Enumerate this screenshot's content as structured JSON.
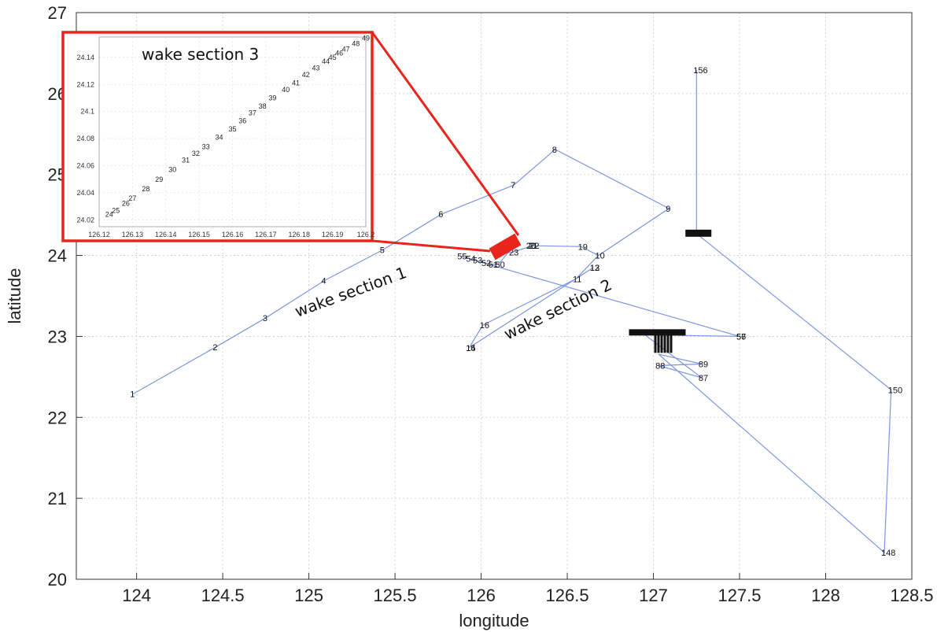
{
  "chart_data": {
    "type": "line",
    "xlabel": "longitude",
    "ylabel": "latitude",
    "xlim": [
      123.65,
      128.5
    ],
    "ylim": [
      20,
      27
    ],
    "xticks": [
      "124",
      "124.5",
      "125",
      "125.5",
      "126",
      "126.5",
      "127",
      "127.5",
      "128",
      "128.5"
    ],
    "yticks": [
      "20",
      "21",
      "22",
      "23",
      "24",
      "25",
      "26",
      "27"
    ],
    "grid": true,
    "line_color": "#7b96e0",
    "points": [
      {
        "label": "1",
        "x": 123.98,
        "y": 22.29
      },
      {
        "label": "2",
        "x": 124.46,
        "y": 22.87
      },
      {
        "label": "3",
        "x": 124.75,
        "y": 23.23
      },
      {
        "label": "4",
        "x": 125.09,
        "y": 23.69
      },
      {
        "label": "5",
        "x": 125.43,
        "y": 24.07
      },
      {
        "label": "6",
        "x": 125.77,
        "y": 24.51
      },
      {
        "label": "7",
        "x": 126.19,
        "y": 24.87
      },
      {
        "label": "8",
        "x": 126.43,
        "y": 25.31
      },
      {
        "label": "9",
        "x": 127.09,
        "y": 24.58
      },
      {
        "label": "10",
        "x": 126.68,
        "y": 24.0
      },
      {
        "label": "11",
        "x": 126.55,
        "y": 23.71
      },
      {
        "label": "12",
        "x": 126.65,
        "y": 23.85
      },
      {
        "label": "13",
        "x": 126.65,
        "y": 23.85
      },
      {
        "label": "14",
        "x": 125.93,
        "y": 22.86
      },
      {
        "label": "15",
        "x": 125.93,
        "y": 22.86
      },
      {
        "label": "16",
        "x": 126.01,
        "y": 23.14
      },
      {
        "label": "19",
        "x": 126.58,
        "y": 24.11
      },
      {
        "label": "20",
        "x": 126.28,
        "y": 24.12
      },
      {
        "label": "21",
        "x": 126.29,
        "y": 24.12
      },
      {
        "label": "22",
        "x": 126.3,
        "y": 24.12
      },
      {
        "label": "23",
        "x": 126.18,
        "y": 24.04
      },
      {
        "label": "50",
        "x": 126.1,
        "y": 23.89
      },
      {
        "label": "51",
        "x": 126.06,
        "y": 23.89
      },
      {
        "label": "52",
        "x": 126.02,
        "y": 23.91
      },
      {
        "label": "53",
        "x": 125.97,
        "y": 23.94
      },
      {
        "label": "54",
        "x": 125.93,
        "y": 23.96
      },
      {
        "label": "55",
        "x": 125.88,
        "y": 23.99
      },
      {
        "label": "56",
        "x": 127.5,
        "y": 23.0
      },
      {
        "label": "57",
        "x": 127.5,
        "y": 23.0
      },
      {
        "label": "87",
        "x": 127.28,
        "y": 22.49
      },
      {
        "label": "88",
        "x": 127.03,
        "y": 22.64
      },
      {
        "label": "89",
        "x": 127.28,
        "y": 22.66
      },
      {
        "label": "148",
        "x": 128.34,
        "y": 20.33
      },
      {
        "label": "150",
        "x": 128.38,
        "y": 22.34
      },
      {
        "label": "156",
        "x": 127.25,
        "y": 26.29
      }
    ],
    "path": [
      [
        123.98,
        22.29
      ],
      [
        124.46,
        22.87
      ],
      [
        124.75,
        23.23
      ],
      [
        125.09,
        23.69
      ],
      [
        125.43,
        24.07
      ],
      [
        125.77,
        24.51
      ],
      [
        126.19,
        24.87
      ],
      [
        126.43,
        25.31
      ],
      [
        127.09,
        24.58
      ],
      [
        126.68,
        24.0
      ],
      [
        126.55,
        23.71
      ],
      [
        126.65,
        23.85
      ],
      [
        125.93,
        22.86
      ],
      [
        126.01,
        23.14
      ],
      [
        126.55,
        23.71
      ],
      [
        126.68,
        24.0
      ],
      [
        126.58,
        24.11
      ],
      [
        126.3,
        24.12
      ],
      [
        126.18,
        24.04
      ],
      [
        126.12,
        24.02
      ],
      [
        126.2,
        24.15
      ],
      [
        126.1,
        23.89
      ],
      [
        126.06,
        23.89
      ],
      [
        126.02,
        23.91
      ],
      [
        125.97,
        23.94
      ],
      [
        125.93,
        23.96
      ],
      [
        125.88,
        23.99
      ],
      [
        127.5,
        23.0
      ],
      [
        126.95,
        23.02
      ],
      [
        127.28,
        22.49
      ],
      [
        127.03,
        22.64
      ],
      [
        127.28,
        22.66
      ],
      [
        127.03,
        22.78
      ],
      [
        128.34,
        20.33
      ],
      [
        128.38,
        22.34
      ],
      [
        127.25,
        24.27
      ],
      [
        127.25,
        26.29
      ]
    ],
    "clusters": [
      {
        "x": 127.05,
        "y": 23.03,
        "label": "cluster"
      },
      {
        "x": 127.3,
        "y": 24.27,
        "label": "cluster"
      }
    ],
    "annotations": [
      "wake section 1",
      "wake section 2"
    ],
    "inset": {
      "title": "wake section 3",
      "xlim": [
        126.12,
        126.2
      ],
      "ylim": [
        24.015,
        24.155
      ],
      "xticks": [
        "126.12",
        "126.13",
        "126.14",
        "126.15",
        "126.16",
        "126.17",
        "126.18",
        "126.19",
        "126.2"
      ],
      "yticks": [
        "24.02",
        "24.04",
        "24.06",
        "24.08",
        "24.1",
        "24.12",
        "24.14"
      ],
      "points": [
        {
          "label": "24",
          "x": 126.123,
          "y": 24.024
        },
        {
          "label": "25",
          "x": 126.125,
          "y": 24.027
        },
        {
          "label": "26",
          "x": 126.128,
          "y": 24.032
        },
        {
          "label": "27",
          "x": 126.13,
          "y": 24.036
        },
        {
          "label": "28",
          "x": 126.134,
          "y": 24.043
        },
        {
          "label": "29",
          "x": 126.138,
          "y": 24.05
        },
        {
          "label": "30",
          "x": 126.142,
          "y": 24.057
        },
        {
          "label": "31",
          "x": 126.146,
          "y": 24.064
        },
        {
          "label": "32",
          "x": 126.149,
          "y": 24.069
        },
        {
          "label": "33",
          "x": 126.152,
          "y": 24.074
        },
        {
          "label": "34",
          "x": 126.156,
          "y": 24.081
        },
        {
          "label": "35",
          "x": 126.16,
          "y": 24.087
        },
        {
          "label": "36",
          "x": 126.163,
          "y": 24.093
        },
        {
          "label": "37",
          "x": 126.166,
          "y": 24.099
        },
        {
          "label": "38",
          "x": 126.169,
          "y": 24.104
        },
        {
          "label": "39",
          "x": 126.172,
          "y": 24.11
        },
        {
          "label": "40",
          "x": 126.176,
          "y": 24.116
        },
        {
          "label": "41",
          "x": 126.179,
          "y": 24.121
        },
        {
          "label": "42",
          "x": 126.182,
          "y": 24.127
        },
        {
          "label": "43",
          "x": 126.185,
          "y": 24.132
        },
        {
          "label": "44",
          "x": 126.188,
          "y": 24.137
        },
        {
          "label": "45",
          "x": 126.19,
          "y": 24.14
        },
        {
          "label": "46",
          "x": 126.192,
          "y": 24.143
        },
        {
          "label": "47",
          "x": 126.194,
          "y": 24.146
        },
        {
          "label": "48",
          "x": 126.197,
          "y": 24.15
        },
        {
          "label": "49",
          "x": 126.2,
          "y": 24.154
        }
      ]
    },
    "highlight_color": "#e8241c"
  }
}
